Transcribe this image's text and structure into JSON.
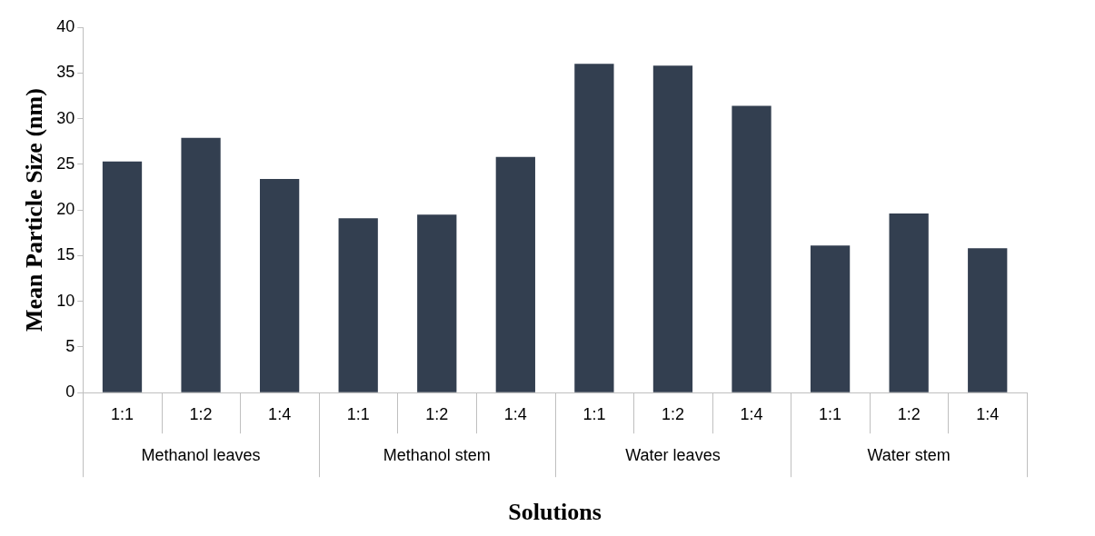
{
  "chart_data": {
    "type": "bar",
    "xlabel": "Solutions",
    "ylabel": "Mean Particle Size (nm)",
    "categories": [
      "1:1",
      "1:2",
      "1:4",
      "1:1",
      "1:2",
      "1:4",
      "1:1",
      "1:2",
      "1:4",
      "1:1",
      "1:2",
      "1:4"
    ],
    "values": [
      25.3,
      27.9,
      23.4,
      19.1,
      19.5,
      25.8,
      36.0,
      35.8,
      31.4,
      16.1,
      19.6,
      15.8
    ],
    "color": "#333f50",
    "ylim": [
      0,
      40
    ],
    "yticks": [
      0,
      5,
      10,
      15,
      20,
      25,
      30,
      35,
      40
    ],
    "grid": false,
    "legend": false,
    "annotations": [
      "Methanol leaves",
      "Methanol stem",
      "Water leaves",
      "Water stem"
    ]
  }
}
